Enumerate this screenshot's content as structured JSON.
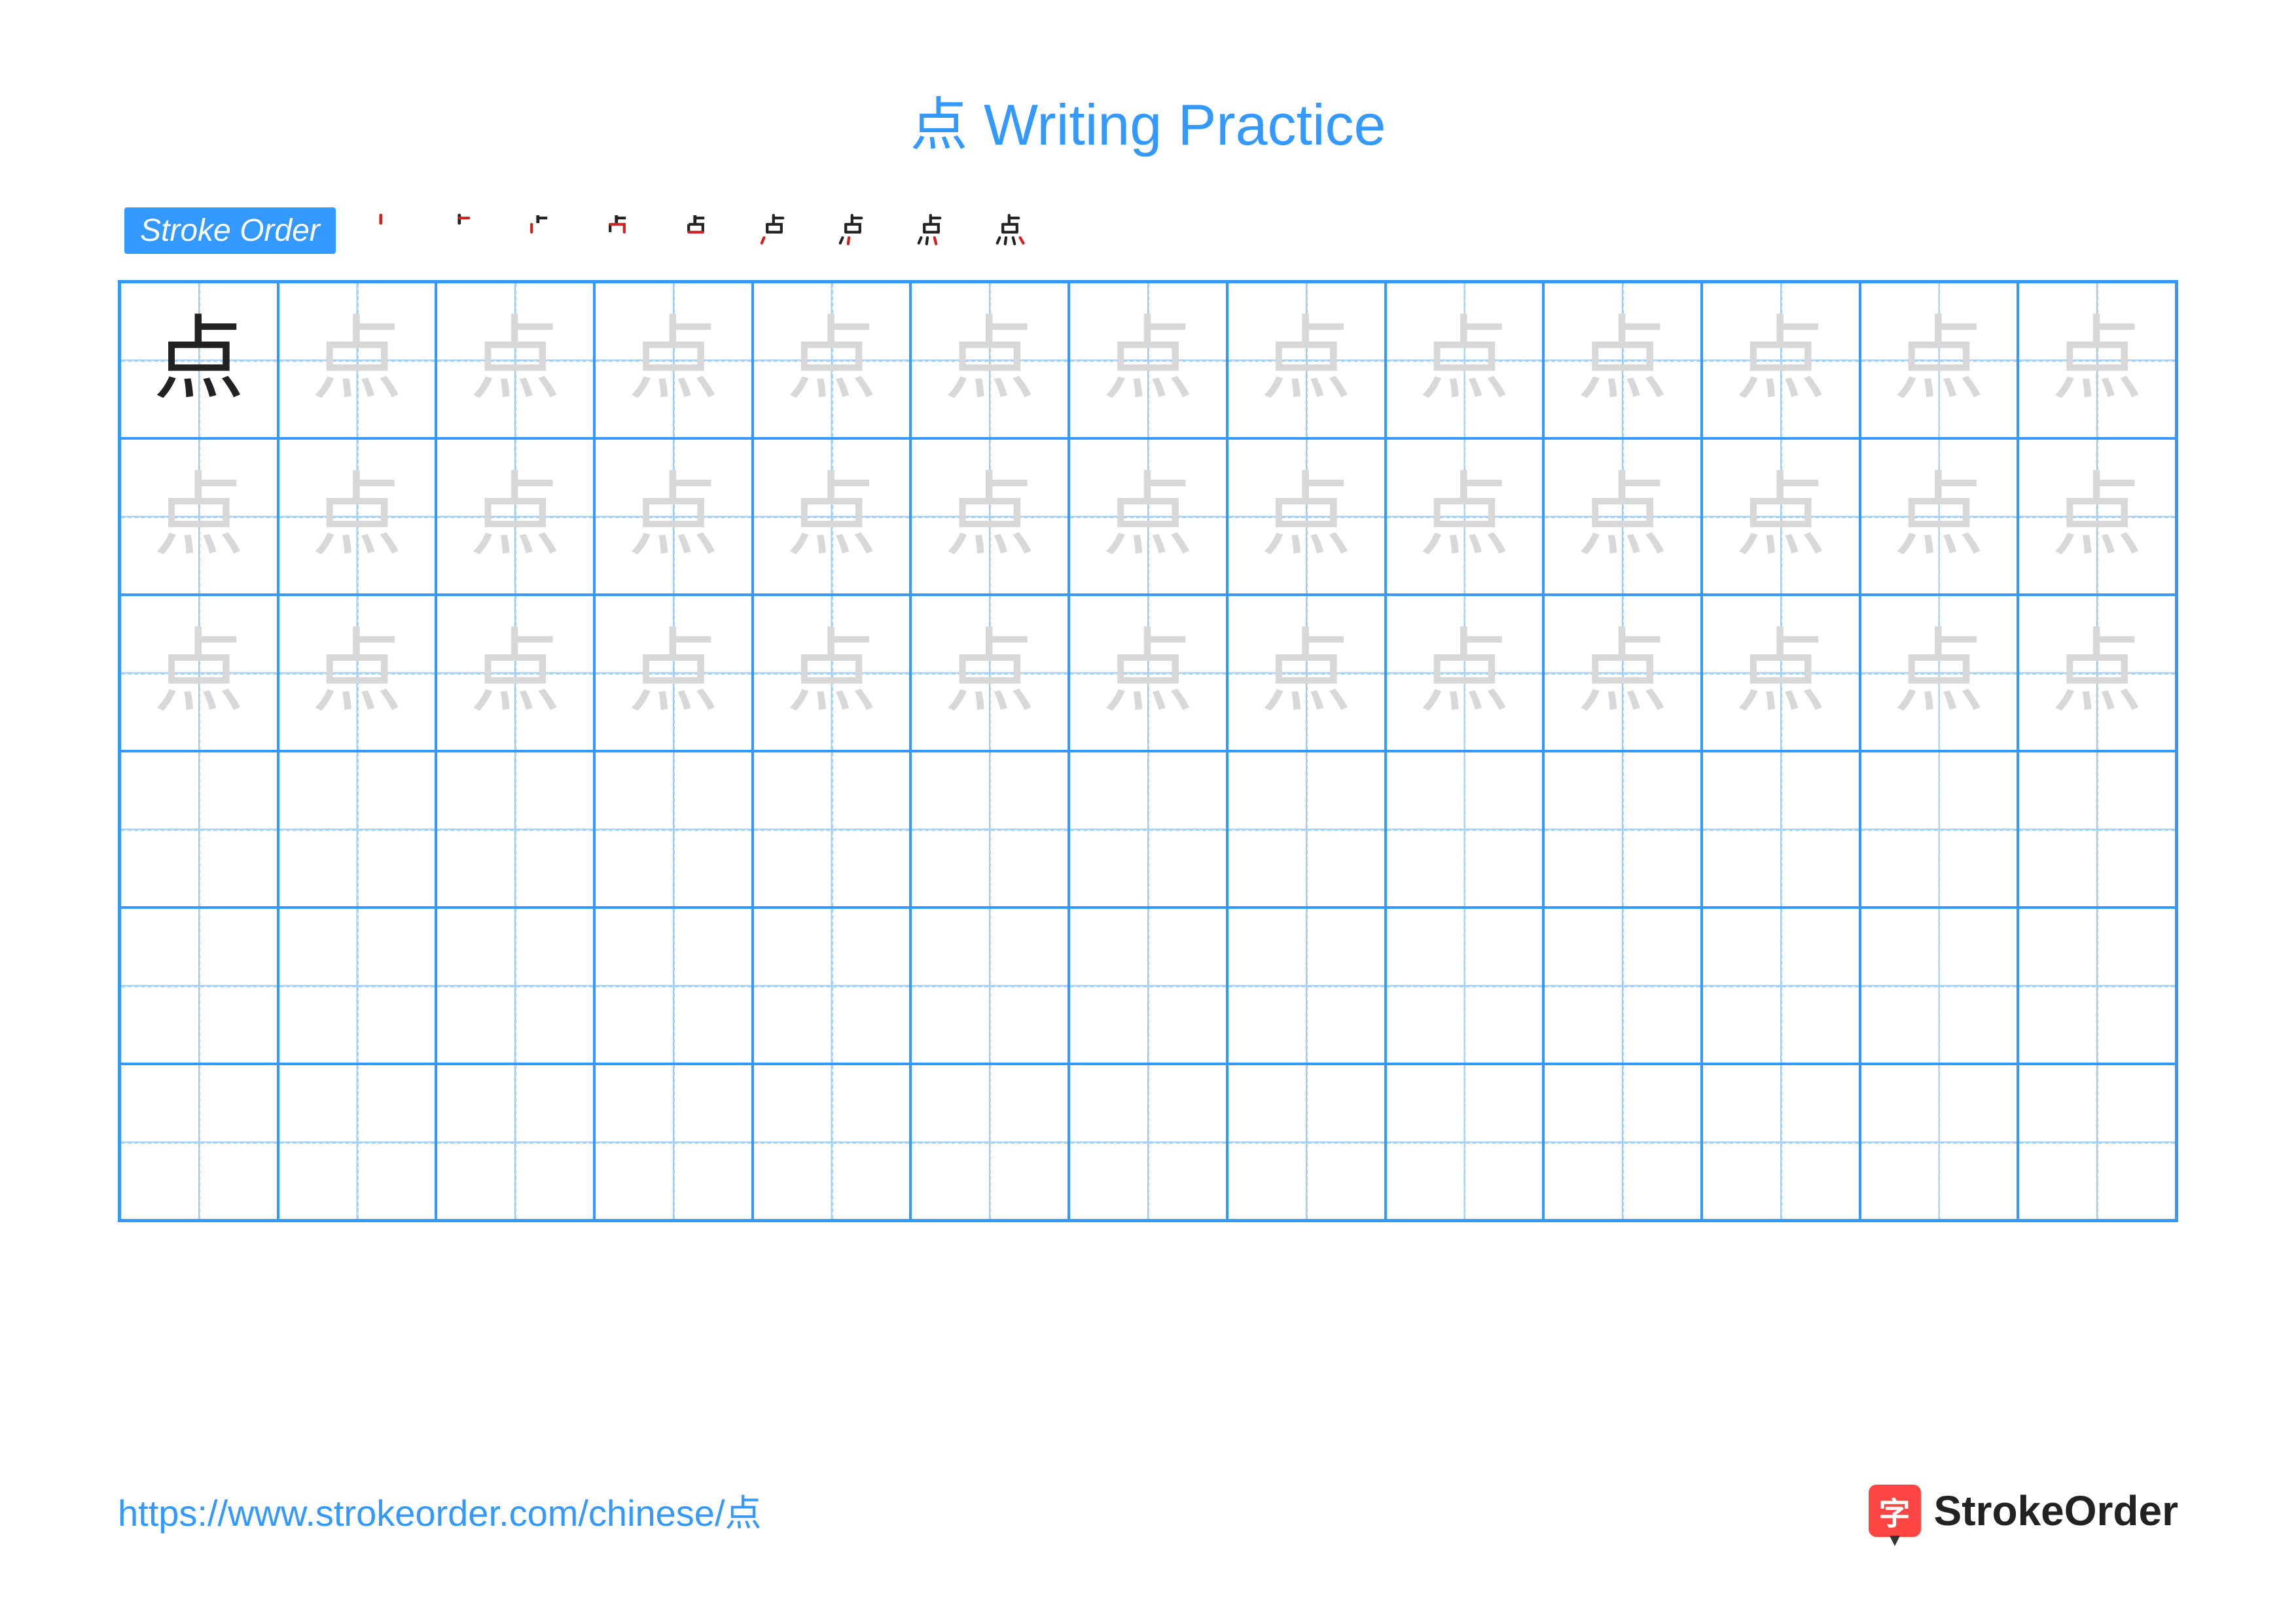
{
  "title": {
    "character": "点",
    "text": "Writing Practice",
    "color": "#3399ff"
  },
  "stroke_order": {
    "label": "Stroke Order",
    "badge_bg": "#3399ff",
    "badge_color": "#ffffff",
    "steps_count": 9,
    "step_char": "点"
  },
  "practice_grid": {
    "rows": 6,
    "cols": 13,
    "character": "点",
    "border_color": "#3399ff",
    "guide_color": "#a8d4f7",
    "model_color": "#222222",
    "trace_color": "#d8d8d8",
    "trace_rows": 3,
    "empty_rows": 3,
    "cell_font_size": 140
  },
  "footer": {
    "url": "https://www.strokeorder.com/chinese/点",
    "url_color": "#3399ff",
    "logo_text": "StrokeOrder",
    "logo_icon_char": "字",
    "logo_icon_bg": "#ff4444"
  },
  "colors": {
    "title": "#3399ff",
    "grid_border": "#3399ff",
    "dash": "#a8d4f7",
    "model_char": "#222222",
    "trace_char": "#d8d8d8",
    "background": "#ffffff"
  }
}
